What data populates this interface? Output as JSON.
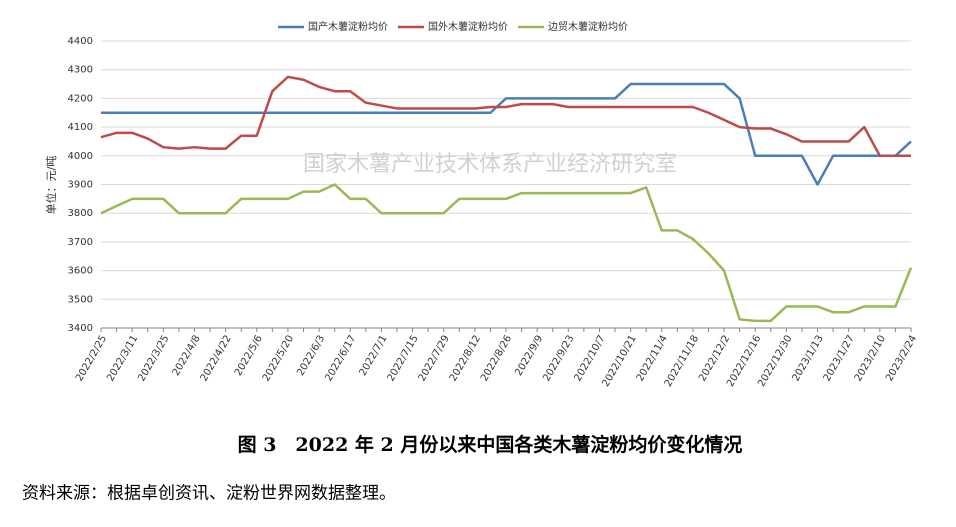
{
  "chart_data": {
    "type": "line",
    "ylabel": "单位：元/吨",
    "watermark": "国家木薯产业技术体系产业经济研究室",
    "title": "图 3　2022 年 2 月份以来中国各类木薯淀粉均价变化情况",
    "source": "资料来源：根据卓创资讯、淀粉世界网数据整理。",
    "categories": [
      "2022/2/25",
      null,
      "2022/3/11",
      null,
      "2022/3/25",
      null,
      "2022/4/8",
      null,
      "2022/4/22",
      null,
      "2022/5/6",
      null,
      "2022/5/20",
      null,
      "2022/6/3",
      null,
      "2022/6/17",
      null,
      "2022/7/1",
      null,
      "2022/7/15",
      null,
      "2022/7/29",
      null,
      "2022/8/12",
      null,
      "2022/8/26",
      null,
      "2022/9/9",
      null,
      "2022/9/23",
      null,
      "2022/10/7",
      null,
      "2022/10/21",
      null,
      "2022/11/4",
      null,
      "2022/11/18",
      null,
      "2022/12/2",
      null,
      "2022/12/16",
      null,
      "2022/12/30",
      null,
      "2023/1/13",
      null,
      "2023/1/27",
      null,
      "2023/2/10",
      null,
      "2023/2/24"
    ],
    "series": [
      {
        "name": "国产木薯淀粉均价",
        "color": "#4a7ebb",
        "values": [
          4150,
          4150,
          4150,
          4150,
          4150,
          4150,
          4150,
          4150,
          4150,
          4150,
          4150,
          4150,
          4150,
          4150,
          4150,
          4150,
          4150,
          4150,
          4150,
          4150,
          4150,
          4150,
          4150,
          4150,
          4150,
          4150,
          4200,
          4200,
          4200,
          4200,
          4200,
          4200,
          4200,
          4200,
          4250,
          4250,
          4250,
          4250,
          4250,
          4250,
          4250,
          4200,
          4000,
          4000,
          4000,
          4000,
          3900,
          4000,
          4000,
          4000,
          4000,
          4000,
          4050
        ]
      },
      {
        "name": "国外木薯淀粉均价",
        "color": "#be4b48",
        "values": [
          4065,
          4080,
          4080,
          4060,
          4030,
          4025,
          4030,
          4025,
          4025,
          4070,
          4070,
          4225,
          4275,
          4265,
          4240,
          4225,
          4225,
          4185,
          4175,
          4165,
          4165,
          4165,
          4165,
          4165,
          4165,
          4170,
          4170,
          4180,
          4180,
          4180,
          4170,
          4170,
          4170,
          4170,
          4170,
          4170,
          4170,
          4170,
          4170,
          4150,
          4125,
          4100,
          4095,
          4095,
          4075,
          4050,
          4050,
          4050,
          4050,
          4100,
          4000,
          4000,
          4000
        ]
      },
      {
        "name": "边贸木薯淀粉均价",
        "color": "#98b954",
        "values": [
          3800,
          3825,
          3850,
          3850,
          3850,
          3800,
          3800,
          3800,
          3800,
          3850,
          3850,
          3850,
          3850,
          3875,
          3875,
          3900,
          3850,
          3850,
          3800,
          3800,
          3800,
          3800,
          3800,
          3850,
          3850,
          3850,
          3850,
          3870,
          3870,
          3870,
          3870,
          3870,
          3870,
          3870,
          3870,
          3890,
          3740,
          3740,
          3710,
          3660,
          3600,
          3430,
          3425,
          3425,
          3475,
          3475,
          3475,
          3455,
          3455,
          3475,
          3475,
          3475,
          3610
        ]
      }
    ],
    "ylim": [
      3400,
      4400
    ],
    "yticks": [
      3400,
      3500,
      3600,
      3700,
      3800,
      3900,
      4000,
      4100,
      4200,
      4300,
      4400
    ],
    "grid": true
  }
}
